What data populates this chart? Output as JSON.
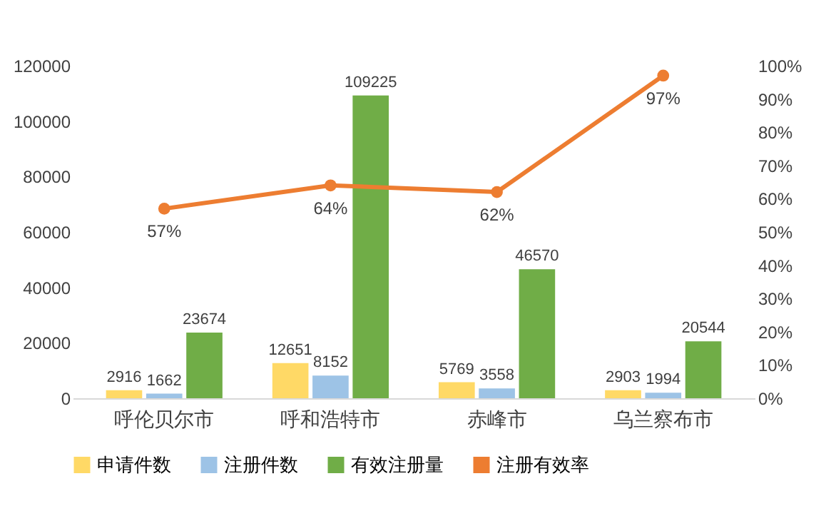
{
  "chart_data": {
    "type": "bar",
    "categories": [
      "呼伦贝尔市",
      "呼和浩特市",
      "赤峰市",
      "乌兰察布市"
    ],
    "series": [
      {
        "name": "申请件数",
        "color": "#ffd966",
        "values": [
          2916,
          12651,
          5769,
          2903
        ]
      },
      {
        "name": "注册件数",
        "color": "#9dc3e6",
        "values": [
          1662,
          8152,
          3558,
          1994
        ]
      },
      {
        "name": "有效注册量",
        "color": "#70ad47",
        "values": [
          23674,
          109225,
          46570,
          20544
        ]
      },
      {
        "name": "注册有效率",
        "type": "line",
        "axis": "y2",
        "color": "#ed7d31",
        "values": [
          57,
          64,
          62,
          97
        ],
        "value_labels": [
          "57%",
          "64%",
          "62%",
          "97%"
        ]
      }
    ],
    "ylim": [
      0,
      120000
    ],
    "yticks": [
      0,
      20000,
      40000,
      60000,
      80000,
      100000,
      120000
    ],
    "y2lim": [
      0,
      100
    ],
    "y2ticks": [
      {
        "value": 0,
        "label": "0%"
      },
      {
        "value": 10,
        "label": "10%"
      },
      {
        "value": 20,
        "label": "20%"
      },
      {
        "value": 30,
        "label": "30%"
      },
      {
        "value": 40,
        "label": "40%"
      },
      {
        "value": 50,
        "label": "50%"
      },
      {
        "value": 60,
        "label": "60%"
      },
      {
        "value": 70,
        "label": "70%"
      },
      {
        "value": 80,
        "label": "80%"
      },
      {
        "value": 90,
        "label": "90%"
      },
      {
        "value": 100,
        "label": "100%"
      }
    ],
    "data_labels": true,
    "legend": "bottom",
    "marker": "circle",
    "line_style": "solid"
  }
}
